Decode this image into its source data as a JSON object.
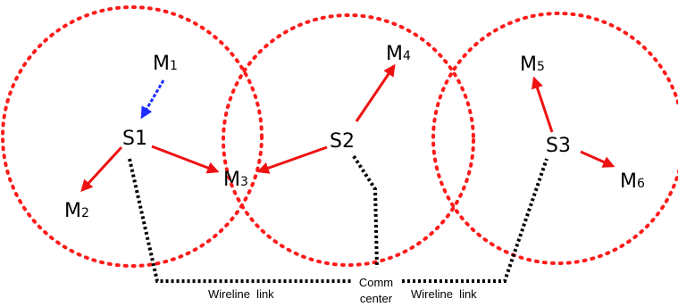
{
  "colors": {
    "range_circle": "#ff1a1a",
    "wireless_link": "#ee1111",
    "handoff_link": "#1f2fff",
    "wireline": "#000000"
  },
  "nodes": {
    "s1": {
      "text": "S1"
    },
    "s2": {
      "text": "S2"
    },
    "s3": {
      "text": "S3"
    },
    "m1": {
      "base": "M",
      "sub": "1"
    },
    "m2": {
      "base": "M",
      "sub": "2"
    },
    "m3": {
      "base": "M",
      "sub": "3"
    },
    "m4": {
      "base": "M",
      "sub": "4"
    },
    "m5": {
      "base": "M",
      "sub": "5"
    },
    "m6": {
      "base": "M",
      "sub": "6"
    }
  },
  "comm_center": {
    "line1": "Comm",
    "line2": "center"
  },
  "wireline_labels": {
    "left": "Wireline  link",
    "right": "Wireline  link"
  }
}
